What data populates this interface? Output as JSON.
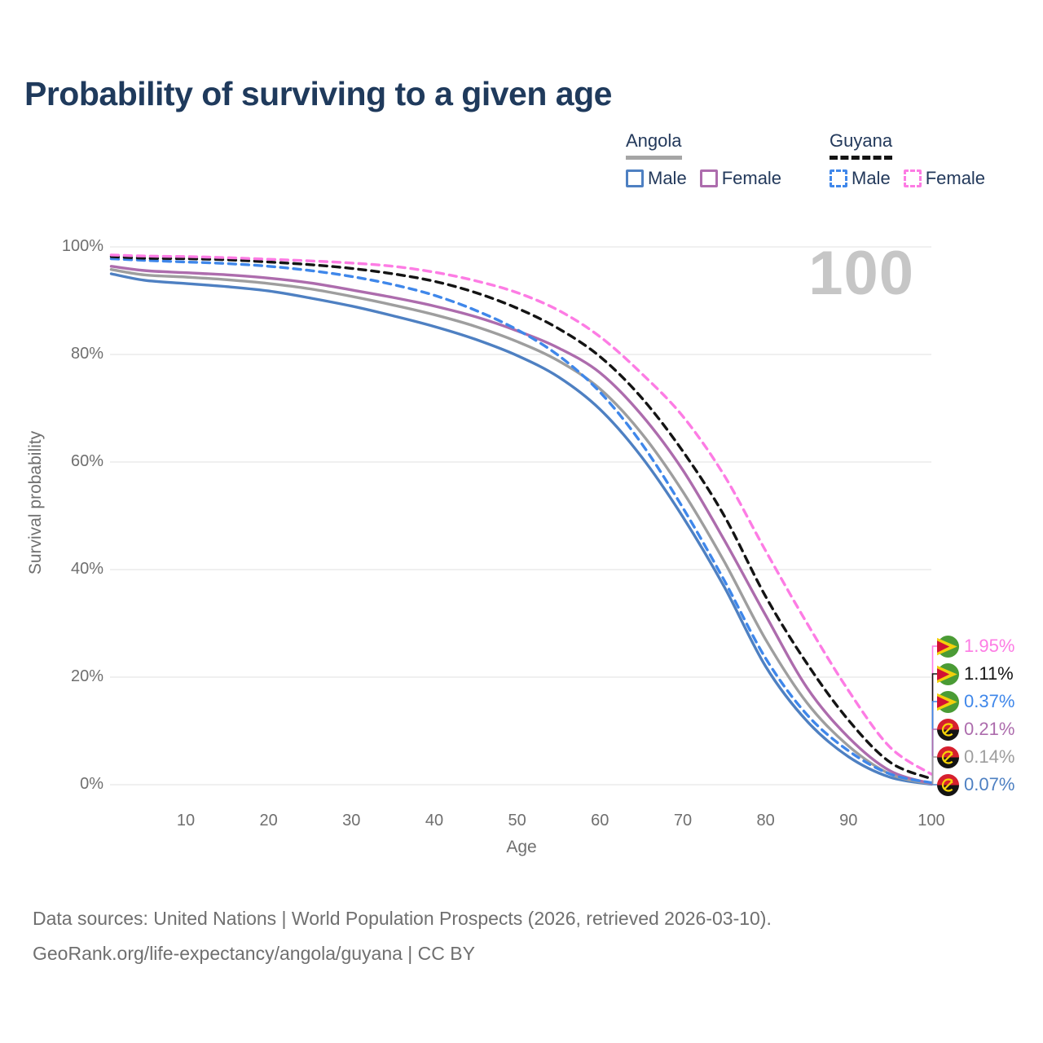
{
  "title": "Probability of surviving to a given age",
  "watermark": "100",
  "legend": {
    "groups": [
      {
        "label": "Angola",
        "line_style": "solid",
        "underline_color": "#a5a5a5",
        "entries": [
          {
            "label": "Male",
            "color": "#4e80c2"
          },
          {
            "label": "Female",
            "color": "#ad6cad"
          }
        ]
      },
      {
        "label": "Guyana",
        "line_style": "dashed",
        "underline_color": "#141414",
        "entries": [
          {
            "label": "Male",
            "color": "#3f87ea"
          },
          {
            "label": "Female",
            "color": "#fd7ce4"
          }
        ]
      }
    ]
  },
  "chart_data": {
    "type": "line",
    "title": "Probability of surviving to a given age",
    "xlabel": "Age",
    "ylabel": "Survival probability",
    "xlim": [
      1,
      100
    ],
    "ylim": [
      0,
      100
    ],
    "x_ticks": [
      10,
      20,
      30,
      40,
      50,
      60,
      70,
      80,
      90,
      100
    ],
    "y_ticks": [
      {
        "label": "100%",
        "value": 100
      },
      {
        "label": "80%",
        "value": 80
      },
      {
        "label": "60%",
        "value": 60
      },
      {
        "label": "40%",
        "value": 40
      },
      {
        "label": "20%",
        "value": 20
      },
      {
        "label": "0%",
        "value": 0
      }
    ],
    "grid": "horizontal",
    "legend_position": "top-right",
    "ages": [
      1,
      5,
      10,
      15,
      20,
      25,
      30,
      35,
      40,
      45,
      50,
      55,
      60,
      65,
      70,
      75,
      80,
      85,
      90,
      95,
      100
    ],
    "series": [
      {
        "name": "Angola Male",
        "country": "Angola",
        "sex": "Male",
        "style": "solid",
        "color": "#4e80c2",
        "flag": "angola",
        "end_label": "0.07%",
        "values": [
          95.0,
          93.8,
          93.2,
          92.6,
          91.8,
          90.5,
          89.0,
          87.2,
          85.2,
          82.8,
          79.8,
          75.8,
          69.8,
          61.0,
          49.8,
          36.8,
          22.0,
          11.8,
          5.2,
          1.4,
          0.07
        ]
      },
      {
        "name": "Angola",
        "country": "Angola",
        "sex": "Both",
        "style": "solid",
        "color": "#9e9e9e",
        "flag": "angola",
        "end_label": "0.14%",
        "values": [
          95.8,
          94.8,
          94.4,
          93.9,
          93.2,
          92.2,
          90.8,
          89.2,
          87.4,
          85.2,
          82.4,
          78.8,
          73.6,
          65.4,
          54.5,
          41.5,
          27.0,
          15.2,
          7.2,
          2.0,
          0.14
        ]
      },
      {
        "name": "Angola Female",
        "country": "Angola",
        "sex": "Female",
        "style": "solid",
        "color": "#ad6cad",
        "flag": "angola",
        "end_label": "0.21%",
        "values": [
          96.4,
          95.6,
          95.2,
          94.8,
          94.2,
          93.3,
          92.0,
          90.6,
          89.0,
          87.0,
          84.4,
          81.2,
          76.6,
          68.8,
          58.5,
          45.5,
          31.5,
          18.0,
          8.8,
          2.6,
          0.21
        ]
      },
      {
        "name": "Guyana Male",
        "country": "Guyana",
        "sex": "Male",
        "style": "dashed",
        "color": "#3f87ea",
        "flag": "guyana",
        "end_label": "0.37%",
        "values": [
          97.8,
          97.5,
          97.2,
          96.9,
          96.4,
          95.6,
          94.5,
          93.0,
          91.0,
          88.2,
          84.6,
          79.8,
          73.0,
          63.5,
          51.5,
          38.0,
          23.5,
          13.0,
          6.3,
          2.0,
          0.37
        ]
      },
      {
        "name": "Guyana",
        "country": "Guyana",
        "sex": "Both",
        "style": "dashed",
        "color": "#141414",
        "flag": "guyana",
        "end_label": "1.11%",
        "values": [
          98.2,
          97.9,
          97.8,
          97.6,
          97.2,
          96.7,
          96.0,
          95.0,
          93.6,
          91.5,
          88.6,
          84.8,
          79.6,
          72.0,
          62.0,
          50.0,
          35.0,
          22.5,
          12.0,
          4.2,
          1.11
        ]
      },
      {
        "name": "Guyana Female",
        "country": "Guyana",
        "sex": "Female",
        "style": "dashed",
        "color": "#fd7ce4",
        "flag": "guyana",
        "end_label": "1.95%",
        "values": [
          98.5,
          98.3,
          98.2,
          98.0,
          97.7,
          97.4,
          97.0,
          96.4,
          95.3,
          93.7,
          91.5,
          88.2,
          83.3,
          76.5,
          68.5,
          57.5,
          43.5,
          30.0,
          17.5,
          7.0,
          1.95
        ]
      }
    ]
  },
  "footer": {
    "line1": "Data sources: United Nations | World Population Prospects (2026, retrieved 2026-03-10).",
    "line2": "GeoRank.org/life-expectancy/angola/guyana | CC BY"
  }
}
